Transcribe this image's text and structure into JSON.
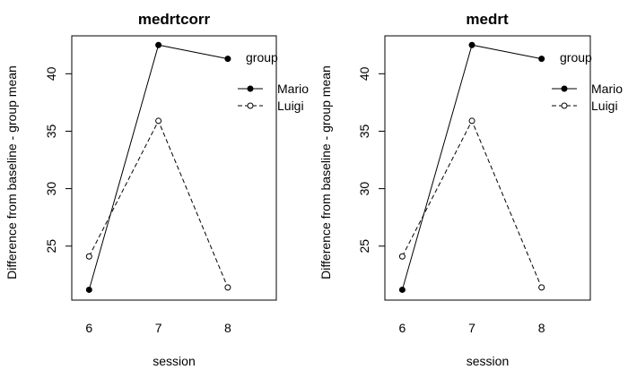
{
  "chart_data": [
    {
      "type": "line",
      "title": "medrtcorr",
      "xlabel": "session",
      "ylabel": "Difference from baseline - group mean",
      "x": [
        6,
        7,
        8
      ],
      "xlim": [
        5.75,
        8.7
      ],
      "ylim": [
        20.3,
        43.3
      ],
      "yticks": [
        25,
        30,
        35,
        40
      ],
      "legend": {
        "title": "group",
        "placement": "top-right",
        "entries": [
          "Mario",
          "Luigi"
        ]
      },
      "series": [
        {
          "name": "Mario",
          "values": [
            21.2,
            42.5,
            41.3
          ],
          "line": "solid",
          "marker": "filled-circle"
        },
        {
          "name": "Luigi",
          "values": [
            24.1,
            35.9,
            21.4
          ],
          "line": "dashed",
          "marker": "open-circle"
        }
      ]
    },
    {
      "type": "line",
      "title": "medrt",
      "xlabel": "session",
      "ylabel": "Difference from baseline - group mean",
      "x": [
        6,
        7,
        8
      ],
      "xlim": [
        5.75,
        8.7
      ],
      "ylim": [
        20.3,
        43.3
      ],
      "yticks": [
        25,
        30,
        35,
        40
      ],
      "legend": {
        "title": "group",
        "placement": "top-right",
        "entries": [
          "Mario",
          "Luigi"
        ]
      },
      "series": [
        {
          "name": "Mario",
          "values": [
            21.2,
            42.5,
            41.3
          ],
          "line": "solid",
          "marker": "filled-circle"
        },
        {
          "name": "Luigi",
          "values": [
            24.1,
            35.9,
            21.4
          ],
          "line": "dashed",
          "marker": "open-circle"
        }
      ]
    }
  ]
}
